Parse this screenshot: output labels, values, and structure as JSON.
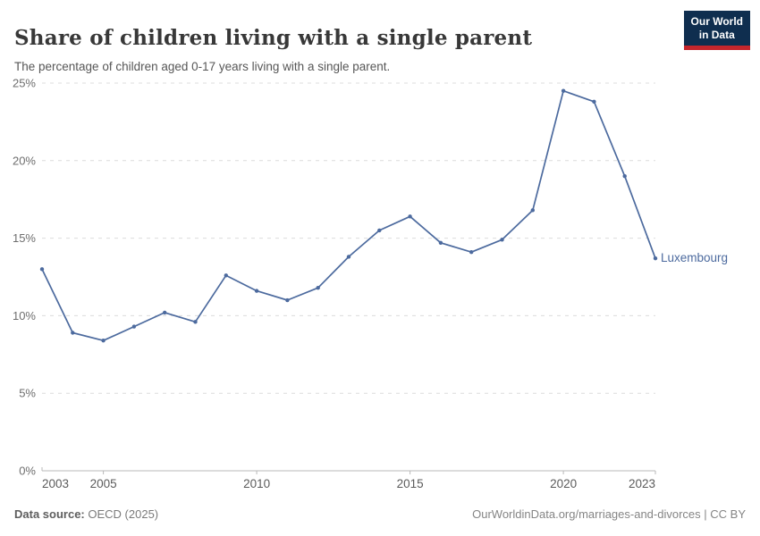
{
  "header": {
    "title": "Share of children living with a single parent",
    "subtitle": "The percentage of children aged 0-17 years living with a single parent.",
    "logo": {
      "line1": "Our World",
      "line2": "in Data"
    }
  },
  "chart_data": {
    "type": "line",
    "title": "Share of children living with a single parent",
    "subtitle": "The percentage of children aged 0-17 years living with a single parent.",
    "x": [
      2003,
      2004,
      2005,
      2006,
      2007,
      2008,
      2009,
      2010,
      2011,
      2012,
      2013,
      2014,
      2015,
      2016,
      2017,
      2018,
      2019,
      2020,
      2021,
      2022,
      2023
    ],
    "series": [
      {
        "name": "Luxembourg",
        "color": "#4c6a9e",
        "values": [
          13.0,
          8.9,
          8.4,
          9.3,
          10.2,
          9.6,
          12.6,
          11.6,
          11.0,
          11.8,
          13.8,
          15.5,
          16.4,
          14.7,
          14.1,
          14.9,
          16.8,
          24.5,
          23.8,
          19.0,
          13.7
        ]
      }
    ],
    "xlabel": "",
    "ylabel": "",
    "xlim": [
      2003,
      2023
    ],
    "ylim": [
      0,
      25
    ],
    "x_ticks": [
      2003,
      2005,
      2010,
      2015,
      2020,
      2023
    ],
    "y_ticks": [
      0,
      5,
      10,
      15,
      20,
      25
    ],
    "y_tick_suffix": "%",
    "grid": "horizontal-dashed",
    "legend_position": "end-of-line-label"
  },
  "footer": {
    "source_label": "Data source:",
    "source_value": "OECD (2025)",
    "link": "OurWorldinData.org/marriages-and-divorces",
    "separator": " | ",
    "license": "CC BY"
  },
  "colors": {
    "line": "#4c6a9e",
    "logo_navy": "#0f2e4f",
    "logo_red": "#c5262c",
    "grid": "#dcdcdc",
    "axis": "#b9b9b9",
    "y_label": "#6e6e6e",
    "x_label": "#5b5b5b"
  }
}
